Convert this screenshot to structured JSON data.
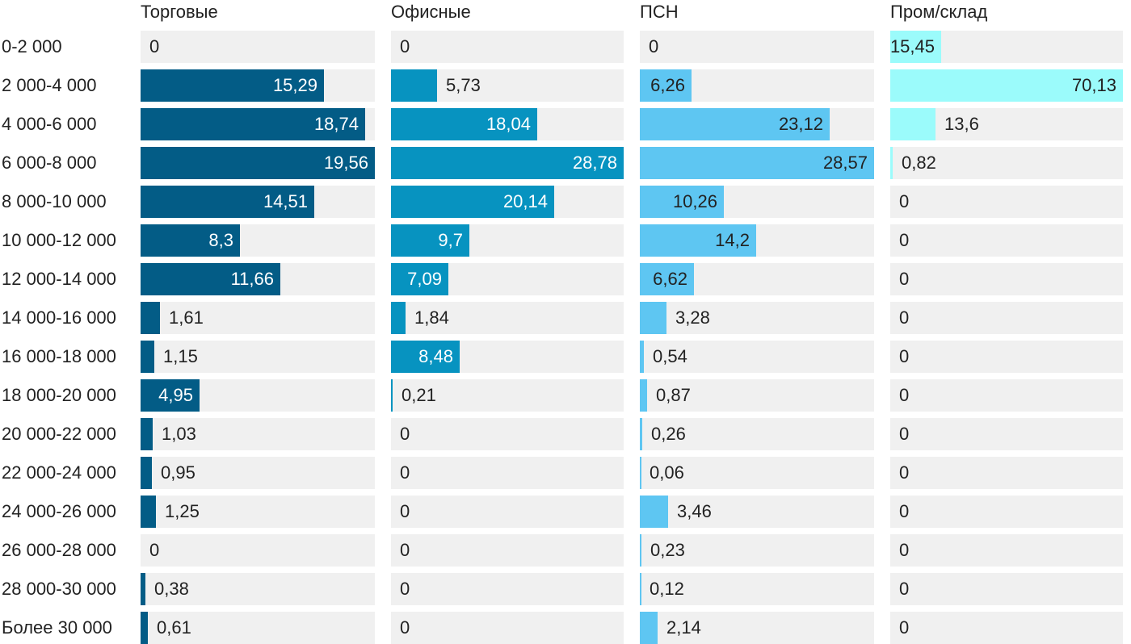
{
  "chart_data": {
    "type": "bar",
    "orientation": "horizontal",
    "categories": [
      "0-2 000",
      "2 000-4 000",
      "4 000-6 000",
      "6 000-8 000",
      "8 000-10 000",
      "10 000-12 000",
      "12 000-14 000",
      "14 000-16 000",
      "16 000-18 000",
      "18 000-20 000",
      "20 000-22 000",
      "22 000-24 000",
      "24 000-26 000",
      "26 000-28 000",
      "28 000-30 000",
      "Более 30 000"
    ],
    "series": [
      {
        "name": "Торговые",
        "color": "#035c86",
        "max": 19.56,
        "values": [
          0,
          15.29,
          18.74,
          19.56,
          14.51,
          8.3,
          11.66,
          1.61,
          1.15,
          4.95,
          1.03,
          0.95,
          1.25,
          0,
          0.38,
          0.61
        ],
        "labels": [
          "0",
          "15,29",
          "18,74",
          "19,56",
          "14,51",
          "8,3",
          "11,66",
          "1,61",
          "1,15",
          "4,95",
          "1,03",
          "0,95",
          "1,25",
          "0",
          "0,38",
          "0,61"
        ]
      },
      {
        "name": "Офисные",
        "color": "#0793c0",
        "max": 28.78,
        "values": [
          0,
          5.73,
          18.04,
          28.78,
          20.14,
          9.7,
          7.09,
          1.84,
          8.48,
          0.21,
          0,
          0,
          0,
          0,
          0,
          0
        ],
        "labels": [
          "0",
          "5,73",
          "18,04",
          "28,78",
          "20,14",
          "9,7",
          "7,09",
          "1,84",
          "8,48",
          "0,21",
          "0",
          "0",
          "0",
          "0",
          "0",
          "0"
        ]
      },
      {
        "name": "ПСН",
        "color": "#5ec6f2",
        "max": 28.57,
        "values": [
          0,
          6.26,
          23.12,
          28.57,
          10.26,
          14.2,
          6.62,
          3.28,
          0.54,
          0.87,
          0.26,
          0.06,
          3.46,
          0.23,
          0.12,
          2.14
        ],
        "labels": [
          "0",
          "6,26",
          "23,12",
          "28,57",
          "10,26",
          "14,2",
          "6,62",
          "3,28",
          "0,54",
          "0,87",
          "0,26",
          "0,06",
          "3,46",
          "0,23",
          "0,12",
          "2,14"
        ]
      },
      {
        "name": "Пром/склад",
        "color": "#9bfbfb",
        "max": 70.13,
        "values": [
          15.45,
          70.13,
          13.6,
          0.82,
          0,
          0,
          0,
          0,
          0,
          0,
          0,
          0,
          0,
          0,
          0,
          0
        ],
        "labels": [
          "15,45",
          "70,13",
          "13,6",
          "0,82",
          "0",
          "0",
          "0",
          "0",
          "0",
          "0",
          "0",
          "0",
          "0",
          "0",
          "0",
          "0"
        ]
      }
    ]
  }
}
